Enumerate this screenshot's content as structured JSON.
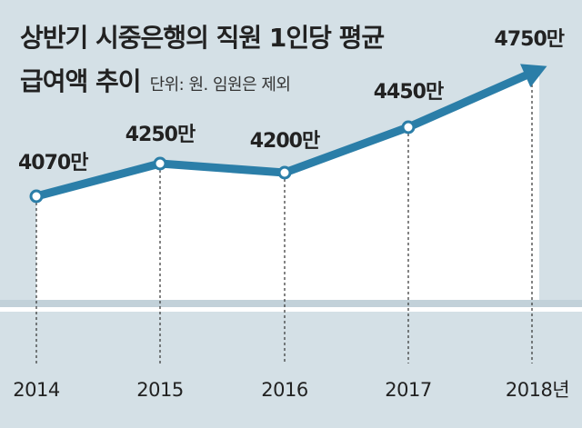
{
  "title": {
    "line1": "상반기 시중은행의 직원 1인당 평균",
    "line2": "급여액 추이"
  },
  "unit_note": "단위: 원. 임원은 제외",
  "colors": {
    "background": "#d4e0e6",
    "line": "#2b7ea8",
    "area": "#ffffff",
    "text": "#222222"
  },
  "chart_data": {
    "type": "line",
    "title": "상반기 시중은행의 직원 1인당 평균 급여액 추이",
    "subtitle": "단위: 원. 임원은 제외",
    "x": [
      "2014",
      "2015",
      "2016",
      "2017",
      "2018"
    ],
    "x_tick_labels": [
      "2014",
      "2015",
      "2016",
      "2017",
      "2018년"
    ],
    "values": [
      4070,
      4250,
      4200,
      4450,
      4750
    ],
    "data_labels": [
      "4070만",
      "4250만",
      "4200만",
      "4450만",
      "4750만"
    ],
    "ylim": [
      3500,
      4800
    ],
    "grid": false,
    "legend": "none",
    "arrow_on_last_point": true
  }
}
